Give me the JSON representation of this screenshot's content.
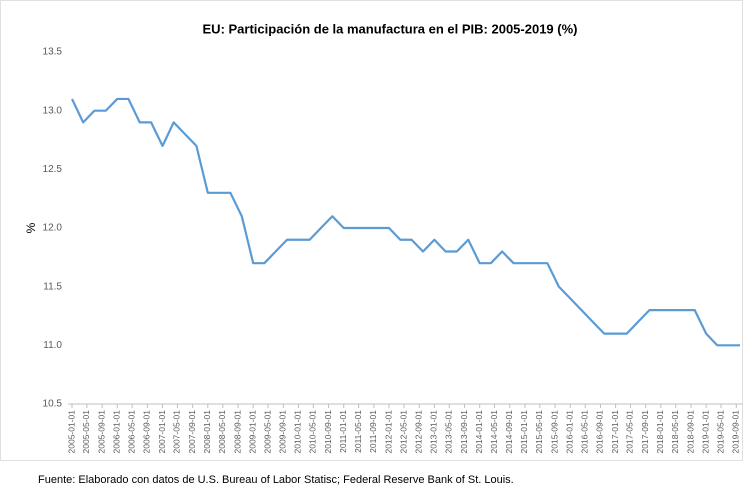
{
  "chart_data": {
    "type": "line",
    "title": "EU: Participación de la manufactura en el PIB: 2005-2019 (%)",
    "y_label": "%",
    "source": "Fuente: Elaborado con datos de U.S. Bureau of Labor Statisc; Federal Reserve Bank of St. Louis.",
    "x": [
      "2005-01-01",
      "2005-04-01",
      "2005-07-01",
      "2005-10-01",
      "2006-01-01",
      "2006-04-01",
      "2006-07-01",
      "2006-10-01",
      "2007-01-01",
      "2007-04-01",
      "2007-07-01",
      "2007-10-01",
      "2008-01-01",
      "2008-04-01",
      "2008-07-01",
      "2008-10-01",
      "2009-01-01",
      "2009-04-01",
      "2009-07-01",
      "2009-10-01",
      "2010-01-01",
      "2010-04-01",
      "2010-07-01",
      "2010-10-01",
      "2011-01-01",
      "2011-04-01",
      "2011-07-01",
      "2011-10-01",
      "2012-01-01",
      "2012-04-01",
      "2012-07-01",
      "2012-10-01",
      "2013-01-01",
      "2013-04-01",
      "2013-07-01",
      "2013-10-01",
      "2014-01-01",
      "2014-04-01",
      "2014-07-01",
      "2014-10-01",
      "2015-01-01",
      "2015-04-01",
      "2015-07-01",
      "2015-10-01",
      "2016-01-01",
      "2016-04-01",
      "2016-07-01",
      "2016-10-01",
      "2017-01-01",
      "2017-04-01",
      "2017-07-01",
      "2017-10-01",
      "2018-01-01",
      "2018-04-01",
      "2018-07-01",
      "2018-10-01",
      "2019-01-01",
      "2019-04-01",
      "2019-07-01",
      "2019-10-01"
    ],
    "series": [
      {
        "name": "Participación",
        "color": "#5b9bd5",
        "values": [
          13.1,
          12.9,
          13.0,
          13.0,
          13.1,
          13.1,
          12.9,
          12.9,
          12.7,
          12.9,
          12.8,
          12.7,
          12.3,
          12.3,
          12.3,
          12.1,
          11.7,
          11.7,
          11.8,
          11.9,
          11.9,
          11.9,
          12.0,
          12.1,
          12.0,
          12.0,
          12.0,
          12.0,
          12.0,
          11.9,
          11.9,
          11.8,
          11.9,
          11.8,
          11.8,
          11.9,
          11.7,
          11.7,
          11.8,
          11.7,
          11.7,
          11.7,
          11.7,
          11.5,
          11.4,
          11.3,
          11.2,
          11.1,
          11.1,
          11.1,
          11.2,
          11.3,
          11.3,
          11.3,
          11.3,
          11.3,
          11.1,
          11.0,
          11.0,
          11.0
        ]
      }
    ],
    "xlim": [
      "2005-01-01",
      "2019-10-01"
    ],
    "xticks": [
      "2005-01-01",
      "2005-05-01",
      "2005-09-01",
      "2006-01-01",
      "2006-05-01",
      "2006-09-01",
      "2007-01-01",
      "2007-05-01",
      "2007-09-01",
      "2008-01-01",
      "2008-05-01",
      "2008-09-01",
      "2009-01-01",
      "2009-05-01",
      "2009-09-01",
      "2010-01-01",
      "2010-05-01",
      "2010-09-01",
      "2011-01-01",
      "2011-05-01",
      "2011-09-01",
      "2012-01-01",
      "2012-05-01",
      "2012-09-01",
      "2013-01-01",
      "2013-05-01",
      "2013-09-01",
      "2014-01-01",
      "2014-05-01",
      "2014-09-01",
      "2015-01-01",
      "2015-05-01",
      "2015-09-01",
      "2016-01-01",
      "2016-05-01",
      "2016-09-01",
      "2017-01-01",
      "2017-05-01",
      "2017-09-01",
      "2018-01-01",
      "2018-05-01",
      "2018-09-01",
      "2019-01-01",
      "2019-05-01",
      "2019-09-01"
    ],
    "ylim": [
      10.5,
      13.5
    ],
    "yticks": [
      10.5,
      {
        "value": 11,
        "label": "11.0"
      },
      11.5,
      {
        "value": 12,
        "label": "12.0"
      },
      12.5,
      {
        "value": 13,
        "label": "13.0"
      },
      13.5
    ],
    "grid": false
  }
}
